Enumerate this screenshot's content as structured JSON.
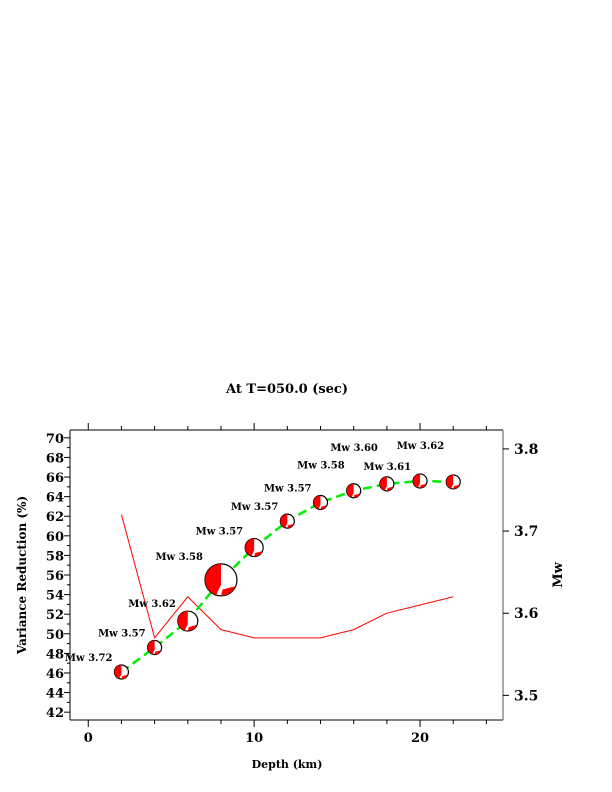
{
  "chart_data": {
    "type": "line",
    "title": "At T=050.0 (sec)",
    "xlabel": "Depth (km)",
    "ylabel": "Variance Reduction (%)",
    "y2label": "Mw",
    "xlim": [
      -1.1,
      25
    ],
    "ylim": [
      41.2,
      70.8
    ],
    "y2lim": [
      3.47,
      3.823
    ],
    "xticks": [
      0,
      10,
      20
    ],
    "yticks": [
      42,
      44,
      46,
      48,
      50,
      52,
      54,
      56,
      58,
      60,
      62,
      64,
      66,
      68,
      70
    ],
    "y2ticks": [
      3.5,
      3.6,
      3.7,
      3.8
    ],
    "x": [
      2,
      4,
      6,
      8,
      10,
      12,
      14,
      16,
      18,
      20,
      22
    ],
    "series": [
      {
        "role": "variance reduction",
        "axis": "left",
        "color": "#00ee00",
        "style": "dashed",
        "values": [
          46.1,
          48.6,
          51.3,
          55.5,
          58.8,
          61.5,
          63.4,
          64.6,
          65.3,
          65.6,
          65.5
        ]
      },
      {
        "role": "Mw",
        "axis": "right",
        "color": "#ff0000",
        "style": "solid",
        "values": [
          3.72,
          3.57,
          3.62,
          3.58,
          3.57,
          3.57,
          3.57,
          3.58,
          3.6,
          3.61,
          3.62
        ]
      }
    ],
    "annotations": [
      "Mw 3.72",
      "Mw 3.57",
      "Mw 3.62",
      "Mw 3.58",
      "Mw 3.57",
      "Mw 3.57",
      "Mw 3.57",
      "Mw 3.58",
      "Mw 3.60",
      "Mw 3.61",
      "Mw 3.62"
    ],
    "markers": "beachball focal mechanisms",
    "marker_color": "#ff0000",
    "grid": false
  }
}
